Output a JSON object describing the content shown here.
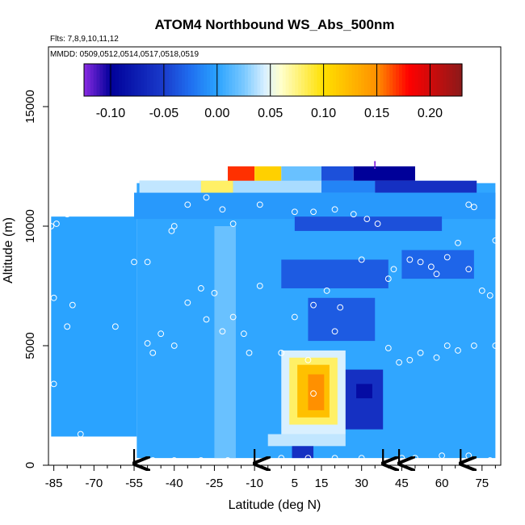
{
  "chart_data": {
    "type": "heatmap",
    "title": "ATOM4 Northbound WS_Abs_500nm",
    "subtitle_flights": "Flts: 7,8,9,10,11,12",
    "subtitle_dates": "MMDD: 0509,0512,0514,0517,0518,0519",
    "xlabel": "Latitude (deg N)",
    "ylabel": "Altitude (m)",
    "xlim": [
      -87,
      82
    ],
    "ylim": [
      0,
      17500
    ],
    "x_ticks": [
      -85,
      -70,
      -55,
      -40,
      -25,
      -10,
      5,
      15,
      30,
      45,
      60,
      75
    ],
    "x_tick_labels": [
      "-85",
      "-70",
      "-55",
      "-40",
      "-25",
      "-10",
      "5",
      "15",
      "30",
      "45",
      "60",
      "75"
    ],
    "y_ticks": [
      0,
      5000,
      10000,
      15000
    ],
    "y_tick_labels": [
      "0",
      "5000",
      "10000",
      "15000"
    ],
    "colorbar": {
      "range": [
        -0.125,
        0.23
      ],
      "ticks": [
        -0.1,
        -0.05,
        0.0,
        0.05,
        0.1,
        0.15,
        0.2
      ],
      "tick_labels": [
        "-0.10",
        "-0.05",
        "0.00",
        "0.05",
        "0.10",
        "0.15",
        "0.20"
      ],
      "stops": [
        {
          "v": -0.125,
          "c": "#8a2be2"
        },
        {
          "v": -0.1,
          "c": "#000099"
        },
        {
          "v": -0.05,
          "c": "#1a3ccc"
        },
        {
          "v": -0.025,
          "c": "#1f6ff0"
        },
        {
          "v": 0.0,
          "c": "#2aa3ff"
        },
        {
          "v": 0.025,
          "c": "#79c8ff"
        },
        {
          "v": 0.045,
          "c": "#d9f0ff"
        },
        {
          "v": 0.06,
          "c": "#ffffcc"
        },
        {
          "v": 0.1,
          "c": "#ffe000"
        },
        {
          "v": 0.15,
          "c": "#ff9000"
        },
        {
          "v": 0.18,
          "c": "#ff0000"
        },
        {
          "v": 0.23,
          "c": "#8b1a1a"
        }
      ]
    },
    "background_value": 0.0,
    "field_regions": [
      {
        "x0": -86,
        "x1": -54,
        "y0": 1200,
        "y1": 10400,
        "v": 0.0
      },
      {
        "x0": -54,
        "x1": 80,
        "y0": 300,
        "y1": 11800,
        "v": 0.002
      },
      {
        "x0": -55,
        "x1": 80,
        "y0": 10300,
        "y1": 11400,
        "v": -0.005
      },
      {
        "x0": -53,
        "x1": 73,
        "y0": 11400,
        "y1": 11900,
        "v": 0.02
      },
      {
        "x0": -53,
        "x1": -30,
        "y0": 11400,
        "y1": 11900,
        "v": 0.04
      },
      {
        "x0": -30,
        "x1": -18,
        "y0": 11400,
        "y1": 11900,
        "v": 0.08
      },
      {
        "x0": -18,
        "x1": 15,
        "y0": 11400,
        "y1": 11900,
        "v": 0.035
      },
      {
        "x0": 15,
        "x1": 35,
        "y0": 11400,
        "y1": 11900,
        "v": -0.015
      },
      {
        "x0": 35,
        "x1": 73,
        "y0": 11400,
        "y1": 11900,
        "v": -0.06
      },
      {
        "x0": -20,
        "x1": -10,
        "y0": 11900,
        "y1": 12500,
        "v": 0.17
      },
      {
        "x0": -10,
        "x1": 0,
        "y0": 11900,
        "y1": 12500,
        "v": 0.11
      },
      {
        "x0": 0,
        "x1": 15,
        "y0": 11900,
        "y1": 12500,
        "v": 0.02
      },
      {
        "x0": 15,
        "x1": 27,
        "y0": 11900,
        "y1": 12500,
        "v": -0.04
      },
      {
        "x0": 27,
        "x1": 50,
        "y0": 11900,
        "y1": 12500,
        "v": -0.1
      },
      {
        "x0": 5,
        "x1": 60,
        "y0": 9800,
        "y1": 10400,
        "v": -0.04
      },
      {
        "x0": 0,
        "x1": 40,
        "y0": 7400,
        "y1": 8600,
        "v": -0.035
      },
      {
        "x0": 45,
        "x1": 72,
        "y0": 7800,
        "y1": 9000,
        "v": -0.03
      },
      {
        "x0": 10,
        "x1": 35,
        "y0": 5200,
        "y1": 7000,
        "v": -0.035
      },
      {
        "x0": 22,
        "x1": 38,
        "y0": 1500,
        "y1": 4000,
        "v": -0.06
      },
      {
        "x0": 28,
        "x1": 34,
        "y0": 2800,
        "y1": 3400,
        "v": -0.09
      },
      {
        "x0": -25,
        "x1": -17,
        "y0": 300,
        "y1": 10000,
        "v": 0.02
      },
      {
        "x0": -5,
        "x1": 24,
        "y0": 800,
        "y1": 1300,
        "v": 0.04
      },
      {
        "x0": 0,
        "x1": 24,
        "y0": 1300,
        "y1": 4800,
        "v": 0.045
      },
      {
        "x0": 3,
        "x1": 21,
        "y0": 1700,
        "y1": 4500,
        "v": 0.08
      },
      {
        "x0": 6,
        "x1": 18,
        "y0": 2000,
        "y1": 4200,
        "v": 0.12
      },
      {
        "x0": 10,
        "x1": 16,
        "y0": 2300,
        "y1": 3800,
        "v": 0.15
      },
      {
        "x0": 4,
        "x1": 12,
        "y0": 300,
        "y1": 800,
        "v": -0.06
      }
    ],
    "sample_points": [
      [
        -86,
        10000
      ],
      [
        -84,
        10100
      ],
      [
        -80,
        10500
      ],
      [
        -76,
        10700
      ],
      [
        -72,
        11100
      ],
      [
        -69,
        11300
      ],
      [
        -66,
        11400
      ],
      [
        -62,
        11400
      ],
      [
        -40,
        10000
      ],
      [
        -41,
        9800
      ],
      [
        -35,
        10900
      ],
      [
        -28,
        11200
      ],
      [
        -22,
        10700
      ],
      [
        -18,
        10100
      ],
      [
        -8,
        10900
      ],
      [
        5,
        10600
      ],
      [
        12,
        10600
      ],
      [
        20,
        10700
      ],
      [
        27,
        10500
      ],
      [
        32,
        10300
      ],
      [
        36,
        10100
      ],
      [
        70,
        10900
      ],
      [
        72,
        10800
      ],
      [
        80,
        9400
      ],
      [
        -85,
        7000
      ],
      [
        -78,
        6700
      ],
      [
        -55,
        8500
      ],
      [
        -50,
        8500
      ],
      [
        -30,
        7400
      ],
      [
        -35,
        6800
      ],
      [
        -25,
        7200
      ],
      [
        -18,
        6200
      ],
      [
        -8,
        7500
      ],
      [
        5,
        6200
      ],
      [
        12,
        6700
      ],
      [
        17,
        7300
      ],
      [
        22,
        6600
      ],
      [
        30,
        8600
      ],
      [
        40,
        7800
      ],
      [
        42,
        8200
      ],
      [
        48,
        8600
      ],
      [
        52,
        8500
      ],
      [
        56,
        8300
      ],
      [
        58,
        8000
      ],
      [
        62,
        8700
      ],
      [
        66,
        9300
      ],
      [
        70,
        8200
      ],
      [
        75,
        7300
      ],
      [
        78,
        7100
      ],
      [
        -80,
        5800
      ],
      [
        -62,
        5800
      ],
      [
        -48,
        4700
      ],
      [
        -50,
        5100
      ],
      [
        -45,
        5500
      ],
      [
        -40,
        5000
      ],
      [
        -28,
        6100
      ],
      [
        -22,
        5600
      ],
      [
        -14,
        5500
      ],
      [
        -12,
        4700
      ],
      [
        0,
        4700
      ],
      [
        10,
        4400
      ],
      [
        20,
        5600
      ],
      [
        40,
        4900
      ],
      [
        44,
        4300
      ],
      [
        48,
        4400
      ],
      [
        52,
        4700
      ],
      [
        58,
        4500
      ],
      [
        62,
        5000
      ],
      [
        66,
        4800
      ],
      [
        72,
        5000
      ],
      [
        80,
        5000
      ],
      [
        -85,
        3400
      ],
      [
        -75,
        1300
      ],
      [
        12,
        3000
      ],
      [
        -40,
        200
      ],
      [
        -30,
        200
      ],
      [
        -20,
        200
      ],
      [
        0,
        300
      ],
      [
        10,
        300
      ],
      [
        20,
        300
      ],
      [
        30,
        300
      ],
      [
        45,
        300
      ],
      [
        50,
        300
      ],
      [
        60,
        400
      ],
      [
        70,
        400
      ],
      [
        78,
        200
      ],
      [
        -55,
        200
      ],
      [
        -48,
        200
      ]
    ],
    "sample_marker_label": "!",
    "sample_marker_point": [
      35,
      12400
    ],
    "flight_arrows_lat": [
      -55,
      -10,
      38,
      44,
      67
    ]
  }
}
